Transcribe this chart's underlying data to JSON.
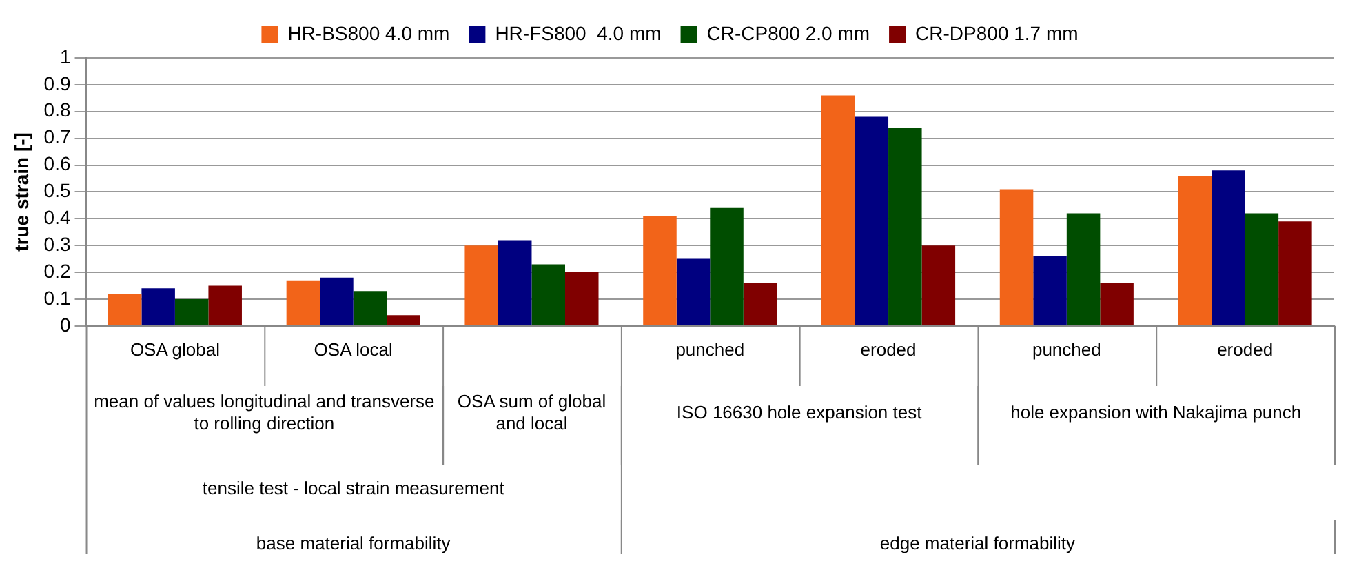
{
  "chart_data": {
    "type": "bar",
    "ylabel": "true strain [-]",
    "categories": [
      "OSA global",
      "OSA local",
      null,
      "punched",
      "eroded",
      "punched",
      "eroded"
    ],
    "series": [
      {
        "name": "HR-BS800 4.0 mm",
        "color": "#f26419",
        "values": [
          0.12,
          0.17,
          0.3,
          0.41,
          0.86,
          0.51,
          0.56
        ]
      },
      {
        "name": "HR-FS800  4.0 mm",
        "color": "#000080",
        "values": [
          0.14,
          0.18,
          0.32,
          0.25,
          0.78,
          0.26,
          0.58
        ]
      },
      {
        "name": "CR-CP800 2.0 mm",
        "color": "#004d00",
        "values": [
          0.1,
          0.13,
          0.23,
          0.44,
          0.74,
          0.42,
          0.42
        ]
      },
      {
        "name": "CR-DP800 1.7 mm",
        "color": "#800000",
        "values": [
          0.15,
          0.04,
          0.2,
          0.16,
          0.3,
          0.16,
          0.39
        ]
      }
    ],
    "ylim": [
      0,
      1
    ],
    "yticks": [
      0,
      0.1,
      0.2,
      0.3,
      0.4,
      0.5,
      0.6,
      0.7,
      0.8,
      0.9,
      1
    ],
    "grid": "y",
    "legend": "top",
    "annotations": [
      "mean of values longitudinal and transverse to rolling direction",
      "OSA sum of global and local",
      "ISO 16630 hole expansion test",
      "hole expansion with Nakajima punch",
      "tensile test - local strain measurement",
      "base material formability",
      "edge material formability"
    ]
  }
}
